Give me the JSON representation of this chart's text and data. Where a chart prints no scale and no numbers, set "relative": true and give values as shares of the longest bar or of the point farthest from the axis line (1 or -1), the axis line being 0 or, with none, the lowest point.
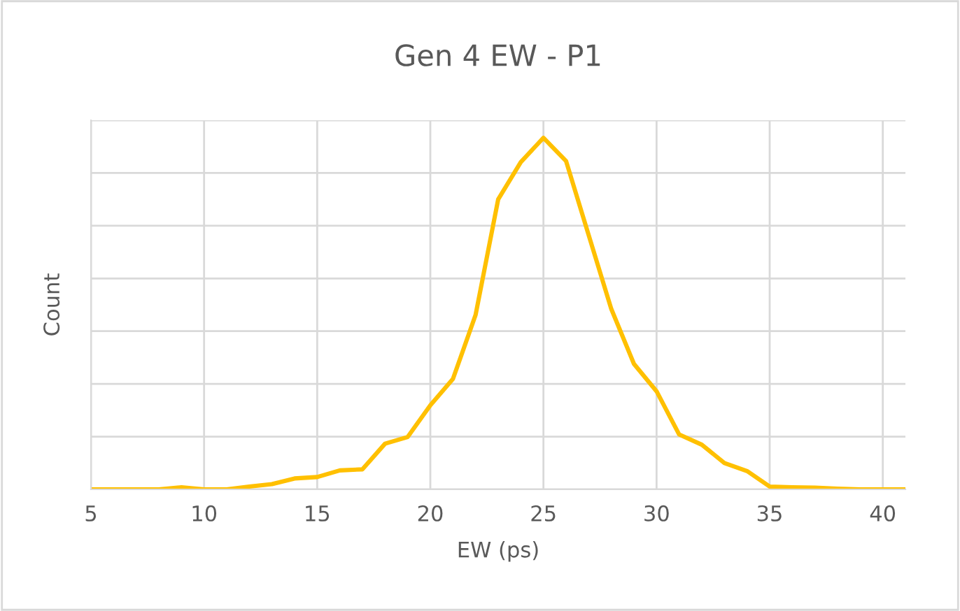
{
  "chart_data": {
    "type": "line",
    "title": "Gen 4 EW - P1",
    "xlabel": "EW (ps)",
    "ylabel": "Count",
    "relative": true,
    "x": [
      5,
      6,
      7,
      8,
      9,
      10,
      11,
      12,
      13,
      14,
      15,
      16,
      17,
      18,
      19,
      20,
      21,
      22,
      23,
      24,
      25,
      26,
      27,
      28,
      29,
      30,
      31,
      32,
      33,
      34,
      35,
      36,
      37,
      38,
      39,
      40,
      41
    ],
    "series": [
      {
        "color": "#ffc000",
        "values": [
          0,
          0,
          0,
          0,
          0.006,
          0,
          0,
          0.008,
          0.015,
          0.031,
          0.035,
          0.054,
          0.057,
          0.13,
          0.149,
          0.239,
          0.314,
          0.496,
          0.825,
          0.931,
          1,
          0.934,
          0.723,
          0.513,
          0.357,
          0.279,
          0.156,
          0.127,
          0.075,
          0.052,
          0.008,
          0.006,
          0.005,
          0.002,
          0,
          0,
          0
        ]
      }
    ],
    "xlim": [
      5,
      41
    ],
    "xticks": [
      5,
      10,
      15,
      20,
      25,
      30,
      35,
      40
    ],
    "grid": true,
    "marker": "none",
    "line_style": "solid",
    "tick_labels": "x"
  }
}
